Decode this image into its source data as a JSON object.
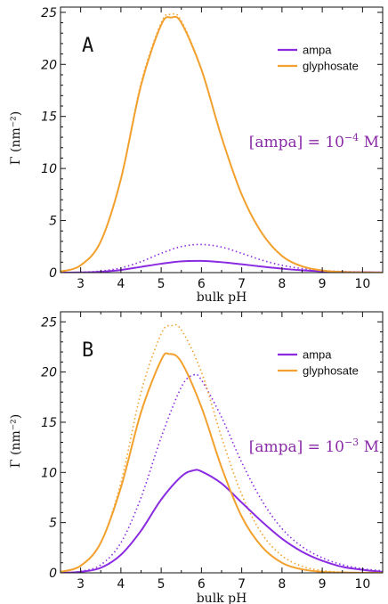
{
  "chart_data": [
    {
      "type": "line",
      "panel_label": "A",
      "annotation": "[ampa] = 10",
      "annotation_exp": "−4",
      "annotation_unit": " M",
      "xlabel": "bulk pH",
      "ylabel": "Γ (nm⁻²)",
      "xlim": [
        2.5,
        10.5
      ],
      "ylim": [
        0,
        25.5
      ],
      "xticks": [
        3,
        4,
        5,
        6,
        7,
        8,
        9,
        10
      ],
      "yticks": [
        0,
        5,
        10,
        15,
        20,
        25
      ],
      "grid": false,
      "legend_position": "top-right",
      "series": [
        {
          "name": "ampa",
          "color": "#8a2be2",
          "style": "solid",
          "x": [
            2.5,
            3,
            3.5,
            4,
            4.5,
            5,
            5.5,
            6,
            6.5,
            7,
            7.5,
            8,
            8.5,
            9,
            9.5,
            10,
            10.5
          ],
          "y": [
            0.0,
            0.02,
            0.08,
            0.25,
            0.55,
            0.85,
            1.08,
            1.12,
            1.0,
            0.8,
            0.58,
            0.38,
            0.22,
            0.12,
            0.06,
            0.03,
            0.01
          ]
        },
        {
          "name": "ampa-dotted",
          "color": "#8a2be2",
          "style": "dotted",
          "x": [
            2.5,
            3,
            3.5,
            4,
            4.5,
            5,
            5.5,
            6,
            6.5,
            7,
            7.5,
            8,
            8.5,
            9,
            9.5,
            10,
            10.5
          ],
          "y": [
            0.0,
            0.03,
            0.15,
            0.45,
            1.05,
            1.85,
            2.5,
            2.7,
            2.45,
            1.85,
            1.2,
            0.7,
            0.38,
            0.2,
            0.1,
            0.05,
            0.02
          ]
        },
        {
          "name": "glyphosate",
          "color": "#f2a12e",
          "style": "solid",
          "x": [
            2.5,
            3,
            3.5,
            4,
            4.5,
            5,
            5.25,
            5.5,
            6,
            6.5,
            7,
            7.5,
            8,
            8.5,
            9,
            9.5,
            10,
            10.5
          ],
          "y": [
            0.1,
            0.7,
            3.0,
            9.0,
            18.0,
            23.8,
            24.5,
            24.0,
            19.5,
            13.0,
            7.5,
            3.8,
            1.6,
            0.6,
            0.2,
            0.06,
            0.02,
            0.0
          ]
        },
        {
          "name": "glyphosate-dotted",
          "color": "#f2a12e",
          "style": "dotted",
          "x": [
            2.5,
            3,
            3.5,
            4,
            4.5,
            5,
            5.25,
            5.5,
            6,
            6.5,
            7,
            7.5,
            8,
            8.5,
            9,
            9.5,
            10,
            10.5
          ],
          "y": [
            0.1,
            0.7,
            3.0,
            9.0,
            18.2,
            24.0,
            24.8,
            24.2,
            19.5,
            13.0,
            7.5,
            3.8,
            1.6,
            0.6,
            0.2,
            0.06,
            0.02,
            0.0
          ]
        }
      ]
    },
    {
      "type": "line",
      "panel_label": "B",
      "annotation": "[ampa] = 10",
      "annotation_exp": "−3",
      "annotation_unit": " M",
      "xlabel": "bulk pH",
      "ylabel": "Γ (nm⁻²)",
      "xlim": [
        2.5,
        10.5
      ],
      "ylim": [
        0,
        26
      ],
      "xticks": [
        3,
        4,
        5,
        6,
        7,
        8,
        9,
        10
      ],
      "yticks": [
        0,
        5,
        10,
        15,
        20,
        25
      ],
      "grid": false,
      "legend_position": "top-right",
      "series": [
        {
          "name": "ampa",
          "color": "#8a2be2",
          "style": "solid",
          "x": [
            2.5,
            3,
            3.5,
            4,
            4.5,
            5,
            5.5,
            5.8,
            6,
            6.5,
            7,
            7.5,
            8,
            8.5,
            9,
            9.5,
            10,
            10.5
          ],
          "y": [
            0.0,
            0.1,
            0.5,
            1.8,
            4.2,
            7.3,
            9.6,
            10.2,
            10.1,
            8.9,
            7.0,
            5.1,
            3.4,
            2.1,
            1.2,
            0.6,
            0.3,
            0.1
          ]
        },
        {
          "name": "ampa-dotted",
          "color": "#8a2be2",
          "style": "dotted",
          "x": [
            2.5,
            3,
            3.5,
            4,
            4.5,
            5,
            5.5,
            5.8,
            6,
            6.5,
            7,
            7.5,
            8,
            8.5,
            9,
            9.5,
            10,
            10.5
          ],
          "y": [
            0.0,
            0.15,
            0.8,
            3.0,
            7.5,
            13.5,
            18.5,
            19.7,
            19.2,
            15.5,
            11.0,
            7.2,
            4.4,
            2.6,
            1.5,
            0.8,
            0.4,
            0.2
          ]
        },
        {
          "name": "glyphosate",
          "color": "#f2a12e",
          "style": "solid",
          "x": [
            2.5,
            3,
            3.5,
            4,
            4.5,
            5,
            5.2,
            5.5,
            6,
            6.5,
            7,
            7.5,
            8,
            8.5,
            9,
            9.5,
            10,
            10.5
          ],
          "y": [
            0.1,
            0.7,
            3.0,
            8.5,
            16.0,
            21.2,
            21.8,
            21.0,
            16.5,
            10.5,
            5.6,
            2.6,
            1.0,
            0.35,
            0.1,
            0.03,
            0.01,
            0.0
          ]
        },
        {
          "name": "glyphosate-dotted",
          "color": "#f2a12e",
          "style": "dotted",
          "x": [
            2.5,
            3,
            3.5,
            4,
            4.5,
            5,
            5.25,
            5.5,
            6,
            6.5,
            7,
            7.5,
            8,
            8.5,
            9,
            9.5,
            10,
            10.5
          ],
          "y": [
            0.1,
            0.7,
            3.0,
            9.0,
            18.0,
            23.8,
            24.6,
            24.2,
            20.0,
            13.5,
            7.8,
            3.9,
            1.7,
            0.65,
            0.22,
            0.07,
            0.02,
            0.0
          ]
        }
      ]
    }
  ]
}
